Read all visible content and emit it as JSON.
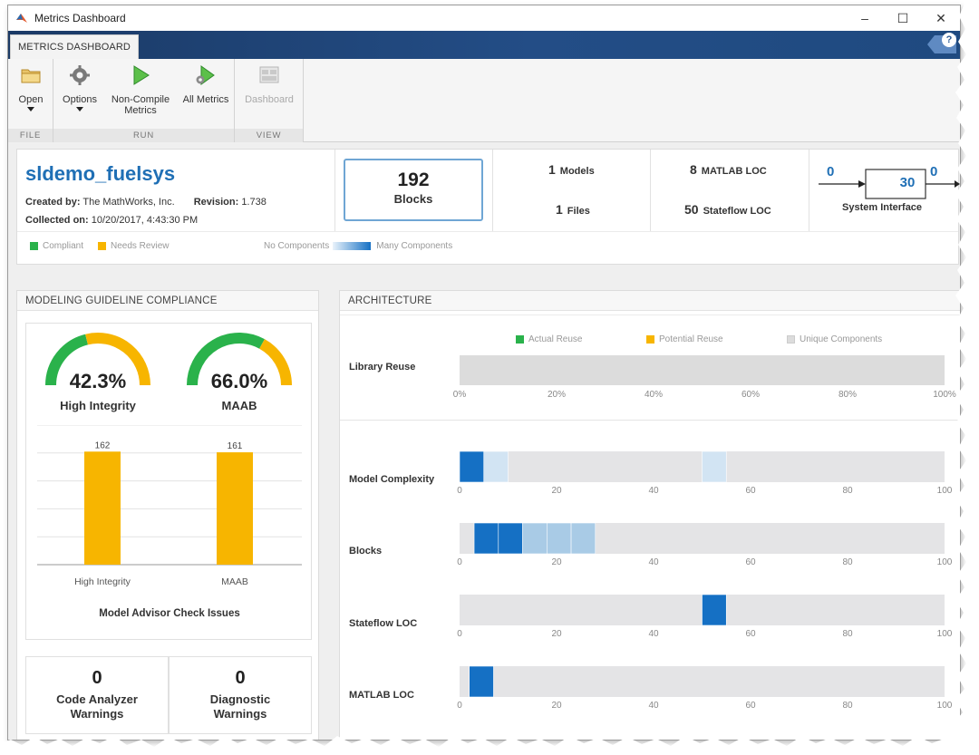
{
  "window": {
    "title": "Metrics Dashboard",
    "minimize": "–",
    "maximize": "☐",
    "close": "✕"
  },
  "ribbon": {
    "tab": "METRICS DASHBOARD",
    "help": "?",
    "groups": {
      "file": "FILE",
      "run": "RUN",
      "view": "VIEW"
    },
    "buttons": {
      "open": "Open",
      "options": "Options",
      "non_compile_1": "Non-Compile",
      "non_compile_2": "Metrics",
      "all_metrics": "All Metrics",
      "dashboard": "Dashboard"
    }
  },
  "summary": {
    "model_name": "sldemo_fuelsys",
    "created_by_label": "Created by:",
    "created_by": "The MathWorks, Inc.",
    "revision_label": "Revision:",
    "revision": "1.738",
    "collected_label": "Collected on:",
    "collected_on": "10/20/2017, 4:43:30 PM",
    "blocks_count": "192",
    "blocks_label": "Blocks",
    "models_count": "1",
    "models_label": "Models",
    "files_count": "1",
    "files_label": "Files",
    "matlab_loc_count": "8",
    "matlab_loc_label": "MATLAB LOC",
    "stateflow_loc_count": "50",
    "stateflow_loc_label": "Stateflow LOC",
    "interface_in": "0",
    "interface_mid": "30",
    "interface_out": "0",
    "interface_label": "System Interface",
    "legend": {
      "compliant": "Compliant",
      "needs_review": "Needs Review",
      "no_components": "No Components",
      "many_components": "Many Components"
    }
  },
  "compliance": {
    "title": "MODELING GUIDELINE COMPLIANCE",
    "gauges": [
      {
        "value_text": "42.3%",
        "label": "High Integrity",
        "fraction": 0.423
      },
      {
        "value_text": "66.0%",
        "label": "MAAB",
        "fraction": 0.66
      }
    ],
    "chart_title": "Model Advisor Check Issues",
    "warnings": [
      {
        "count": "0",
        "label_1": "Code Analyzer",
        "label_2": "Warnings"
      },
      {
        "count": "0",
        "label_1": "Diagnostic",
        "label_2": "Warnings"
      }
    ]
  },
  "architecture": {
    "title": "ARCHITECTURE",
    "legend": {
      "actual": "Actual Reuse",
      "potential": "Potential Reuse",
      "unique": "Unique Components"
    },
    "library_reuse_label": "Library Reuse",
    "library_ticks": [
      "0%",
      "20%",
      "40%",
      "60%",
      "80%",
      "100%"
    ],
    "hist_ticks": [
      "0",
      "20",
      "40",
      "60",
      "80",
      "100"
    ],
    "rows": [
      "Model Complexity",
      "Blocks",
      "Stateflow LOC",
      "MATLAB LOC"
    ]
  },
  "colors": {
    "accent": "#1f6fb5",
    "compliant": "#2ab24b",
    "review": "#f7b500",
    "dark_blue": "#1570c4",
    "light_blue": "#a9cbe6",
    "bar_bg": "#e4e4e6"
  },
  "chart_data": {
    "type": "bar",
    "categories": [
      "High Integrity",
      "MAAB"
    ],
    "values": [
      162,
      161
    ],
    "data_labels": [
      "162",
      "161"
    ],
    "title": "Model Advisor Check Issues",
    "xlabel": "",
    "ylabel": "",
    "grid": true
  },
  "architecture_data": {
    "library_reuse": {
      "actual": 0,
      "potential": 0,
      "unique": 100
    },
    "histograms": [
      {
        "name": "Model Complexity",
        "cells": [
          {
            "from": 0,
            "to": 5,
            "shade": "dark"
          },
          {
            "from": 5,
            "to": 10,
            "shade": "pale"
          },
          {
            "from": 50,
            "to": 55,
            "shade": "pale"
          }
        ]
      },
      {
        "name": "Blocks",
        "cells": [
          {
            "from": 3,
            "to": 8,
            "shade": "dark"
          },
          {
            "from": 8,
            "to": 13,
            "shade": "dark"
          },
          {
            "from": 13,
            "to": 18,
            "shade": "light"
          },
          {
            "from": 18,
            "to": 23,
            "shade": "light"
          },
          {
            "from": 23,
            "to": 28,
            "shade": "light"
          }
        ]
      },
      {
        "name": "Stateflow LOC",
        "cells": [
          {
            "from": 50,
            "to": 55,
            "shade": "dark"
          }
        ]
      },
      {
        "name": "MATLAB LOC",
        "cells": [
          {
            "from": 2,
            "to": 7,
            "shade": "dark"
          }
        ]
      }
    ]
  }
}
